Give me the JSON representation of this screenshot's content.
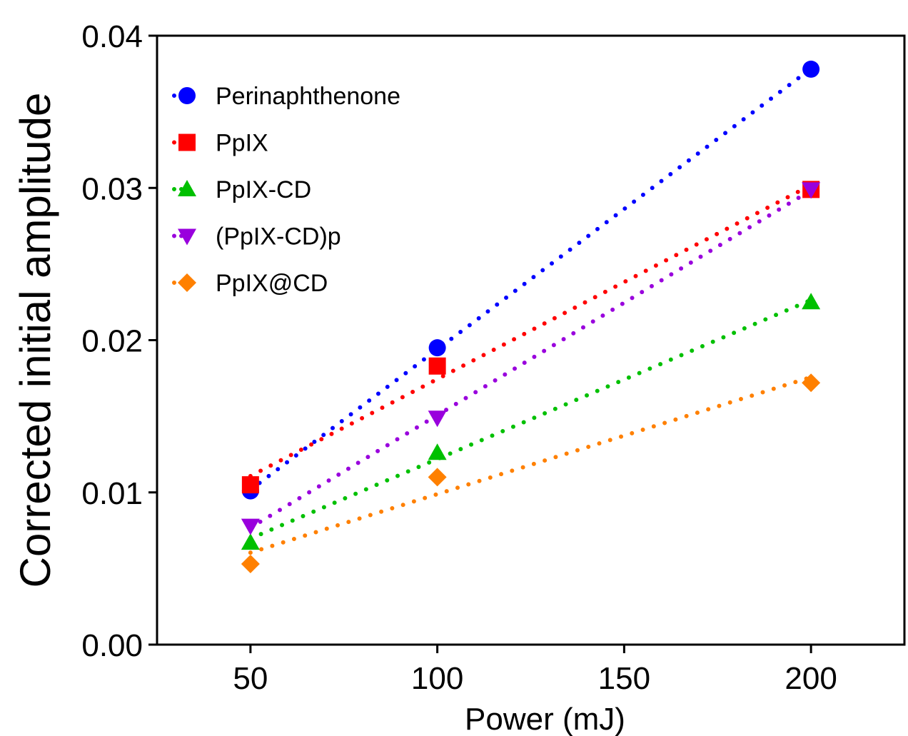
{
  "chart_data": {
    "type": "scatter",
    "title": "",
    "xlabel": "Power (mJ)",
    "ylabel": "Corrected initial amplitude",
    "xlim": [
      25,
      225
    ],
    "ylim": [
      0,
      0.04
    ],
    "xticks": [
      50,
      100,
      150,
      200
    ],
    "xtick_labels": [
      "50",
      "100",
      "150",
      "200"
    ],
    "yticks": [
      0,
      0.01,
      0.02,
      0.03,
      0.04
    ],
    "ytick_labels": [
      "0.00",
      "0.01",
      "0.02",
      "0.03",
      "0.04"
    ],
    "grid": false,
    "legend_position": "top-left",
    "trendlines": "dotted linear fit per series",
    "series": [
      {
        "name": "Perinaphthenone",
        "marker": "circle",
        "color": "#0000ff",
        "x": [
          50,
          100,
          200
        ],
        "y": [
          0.0101,
          0.0195,
          0.0378
        ]
      },
      {
        "name": "PpIX",
        "marker": "square",
        "color": "#ff0000",
        "x": [
          50,
          100,
          200
        ],
        "y": [
          0.0105,
          0.0183,
          0.0299
        ]
      },
      {
        "name": "PpIX-CD",
        "marker": "triangle-up",
        "color": "#00c000",
        "x": [
          50,
          100,
          200
        ],
        "y": [
          0.0067,
          0.0126,
          0.0225
        ]
      },
      {
        "name": "(PpIX-CD)p",
        "marker": "triangle-down",
        "color": "#9900dd",
        "x": [
          50,
          100,
          200
        ],
        "y": [
          0.0078,
          0.0149,
          0.0299
        ]
      },
      {
        "name": "PpIX@CD",
        "marker": "diamond",
        "color": "#ff8000",
        "x": [
          50,
          100,
          200
        ],
        "y": [
          0.0053,
          0.011,
          0.0172
        ]
      }
    ]
  }
}
